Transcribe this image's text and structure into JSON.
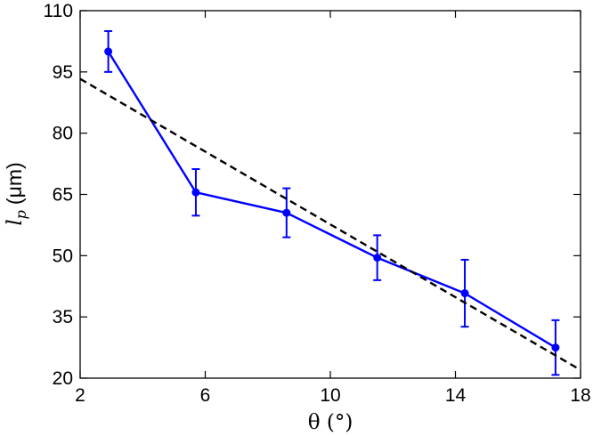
{
  "chart_data": {
    "type": "line",
    "title": "",
    "xlabel": "θ (°)",
    "ylabel_symbol": "l",
    "ylabel_subscript": "p",
    "ylabel_unit": "(μm)",
    "xlim": [
      2,
      18
    ],
    "ylim": [
      20,
      110
    ],
    "x_ticks": [
      2,
      6,
      10,
      14,
      18
    ],
    "y_ticks": [
      20,
      35,
      50,
      65,
      80,
      95,
      110
    ],
    "grid": false,
    "series": [
      {
        "kind": "errorbar-line",
        "color": "#0000ff",
        "x": [
          2.9,
          5.7,
          8.6,
          11.5,
          14.3,
          17.2
        ],
        "y": [
          100,
          65.5,
          60.5,
          49.5,
          40.8,
          27.5
        ],
        "yerr": [
          5,
          5.7,
          6,
          5.5,
          8.2,
          6.7
        ]
      },
      {
        "kind": "fit-line",
        "color": "#000000",
        "style": "dashed",
        "x": [
          2,
          18
        ],
        "y": [
          93.3,
          22
        ]
      }
    ]
  }
}
